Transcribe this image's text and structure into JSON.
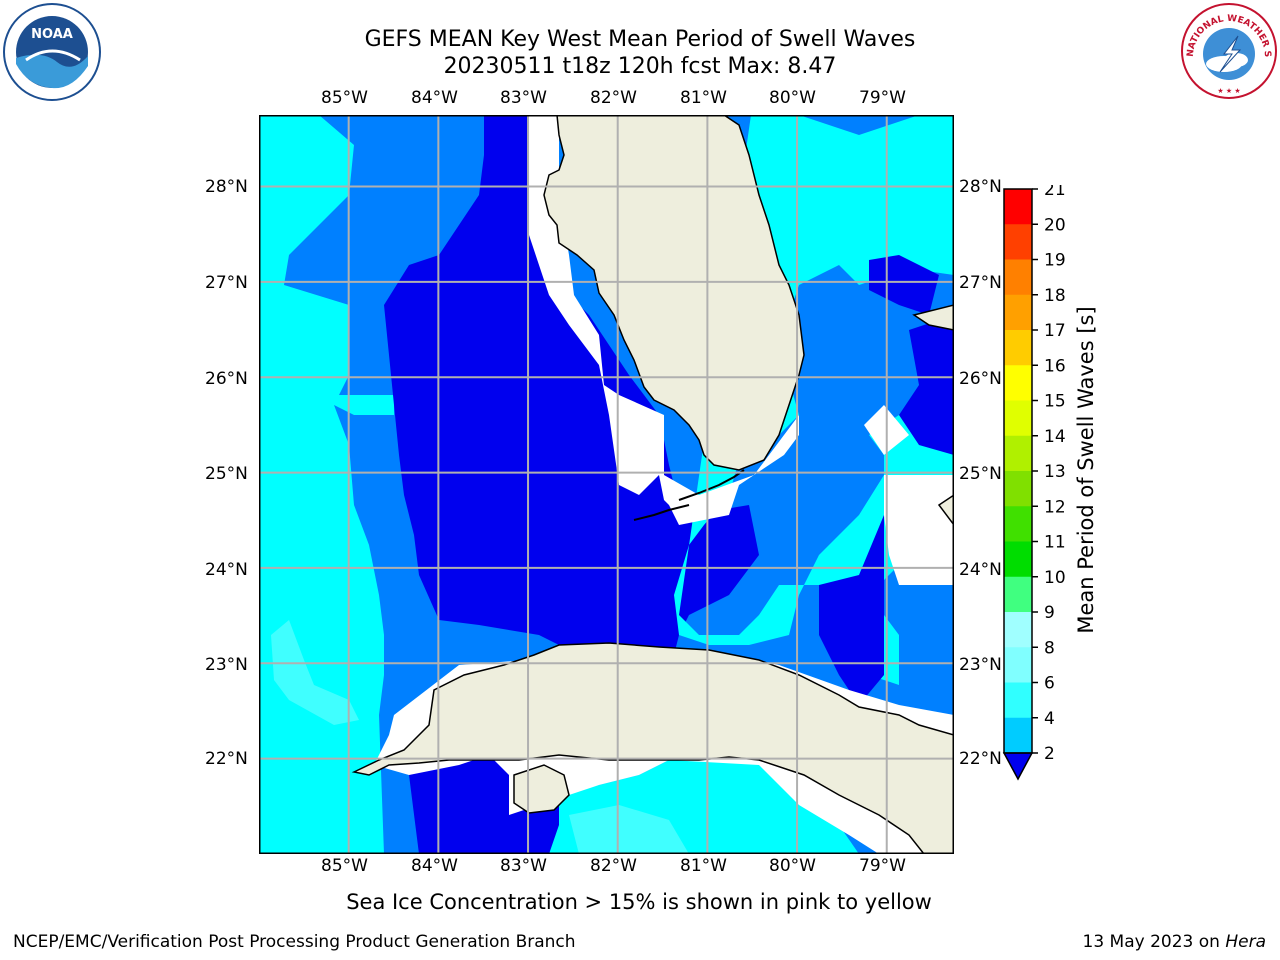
{
  "title_line1": "GEFS MEAN Key West Mean Period of Swell Waves",
  "title_line2": "20230511 t18z 120h fcst   Max: 8.47",
  "map": {
    "lon_ticks": [
      "85°W",
      "84°W",
      "83°W",
      "82°W",
      "81°W",
      "80°W",
      "79°W"
    ],
    "lat_ticks": [
      "28°N",
      "27°N",
      "26°N",
      "25°N",
      "24°N",
      "23°N",
      "22°N"
    ],
    "lon_range": [
      -86.0,
      -78.25
    ],
    "lat_range": [
      21.0,
      28.75
    ],
    "ocean_colors": {
      "level_2_4": "#0000ee",
      "level_4_6": "#0080ff",
      "level_6_8": "#00ffff",
      "level_8_9": "#40ffff"
    },
    "land_color": "#eeeedd",
    "grid": true
  },
  "colorbar": {
    "label": "Mean Period of Swell Waves [s]",
    "ticks": [
      "2",
      "4",
      "6",
      "8",
      "9",
      "10",
      "11",
      "12",
      "13",
      "14",
      "15",
      "16",
      "17",
      "18",
      "19",
      "20",
      "21"
    ],
    "colors": [
      "#0060ff",
      "#00ccff",
      "#30ffff",
      "#80ffff",
      "#a0ffff",
      "#40ff80",
      "#00dd00",
      "#40e000",
      "#80e000",
      "#b0f000",
      "#e0ff00",
      "#ffff00",
      "#ffcc00",
      "#ffa000",
      "#ff8000",
      "#ff4000",
      "#ff0000"
    ]
  },
  "note": "Sea Ice Concentration > 15% is shown in pink to yellow",
  "footer_left": "NCEP/EMC/Verification Post Processing Product Generation Branch",
  "footer_date": "13 May 2023 on ",
  "footer_host": "Hera",
  "logos": {
    "left_text": "NOAA",
    "right_text": "NATIONAL WEATHER SERVICE"
  }
}
